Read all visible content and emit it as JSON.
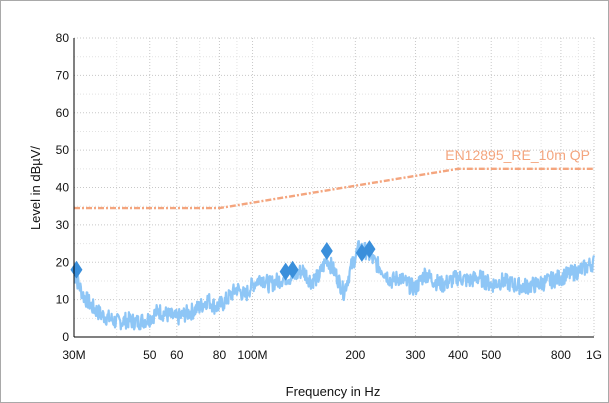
{
  "chart_data": {
    "type": "line",
    "title": "",
    "xlabel": "Frequency in Hz",
    "ylabel": "Level in dBµV/",
    "x_scale": "log",
    "xlim": [
      30,
      1000
    ],
    "ylim": [
      0,
      80
    ],
    "grid": true,
    "x_ticks": [
      {
        "value": 30,
        "label": "30M"
      },
      {
        "value": 50,
        "label": "50"
      },
      {
        "value": 60,
        "label": "60"
      },
      {
        "value": 80,
        "label": "80"
      },
      {
        "value": 100,
        "label": "100M"
      },
      {
        "value": 200,
        "label": "200"
      },
      {
        "value": 300,
        "label": "300"
      },
      {
        "value": 400,
        "label": "400"
      },
      {
        "value": 500,
        "label": "500"
      },
      {
        "value": 800,
        "label": "800"
      },
      {
        "value": 1000,
        "label": "1G"
      }
    ],
    "y_ticks": [
      0,
      10,
      20,
      30,
      40,
      50,
      60,
      70,
      80
    ],
    "series": [
      {
        "name": "",
        "kind": "spectrum",
        "color": "#8ec6f6",
        "x": [
          30,
          31,
          32,
          34,
          36,
          38,
          40,
          43,
          46,
          50,
          53,
          56,
          60,
          63,
          67,
          70,
          74,
          78,
          82,
          86,
          90,
          95,
          100,
          106,
          112,
          118,
          125,
          132,
          140,
          148,
          156,
          165,
          175,
          185,
          195,
          205,
          215,
          228,
          240,
          255,
          270,
          285,
          300,
          320,
          340,
          360,
          380,
          400,
          430,
          460,
          500,
          540,
          580,
          620,
          680,
          740,
          800,
          860,
          920,
          960,
          1000
        ],
        "y": [
          17,
          14,
          11,
          8,
          6,
          5,
          4,
          4.5,
          4,
          5,
          7,
          6,
          5,
          6,
          7,
          8,
          10,
          8,
          9,
          11,
          13,
          11,
          14,
          16,
          14,
          15,
          16,
          16,
          18,
          15,
          16,
          21,
          17,
          12,
          19,
          24,
          23,
          20,
          18,
          15,
          16,
          14,
          13,
          17,
          15,
          14,
          15,
          16,
          15,
          16,
          14,
          15,
          14,
          13.5,
          14,
          15,
          16,
          17,
          18,
          19,
          20
        ]
      },
      {
        "name": "EN12895_RE_10m QP",
        "kind": "limit",
        "color": "#f4a57e",
        "x": [
          30,
          80,
          400,
          1000
        ],
        "y": [
          34.5,
          34.5,
          45,
          45
        ]
      },
      {
        "name": "",
        "kind": "markers",
        "color": "#3a8fdb",
        "x": [
          30.5,
          125,
          131,
          165,
          209,
          220
        ],
        "y": [
          18,
          17.5,
          18,
          23,
          22.5,
          23.5
        ]
      }
    ],
    "limit_label": "EN12895_RE_10m QP"
  }
}
